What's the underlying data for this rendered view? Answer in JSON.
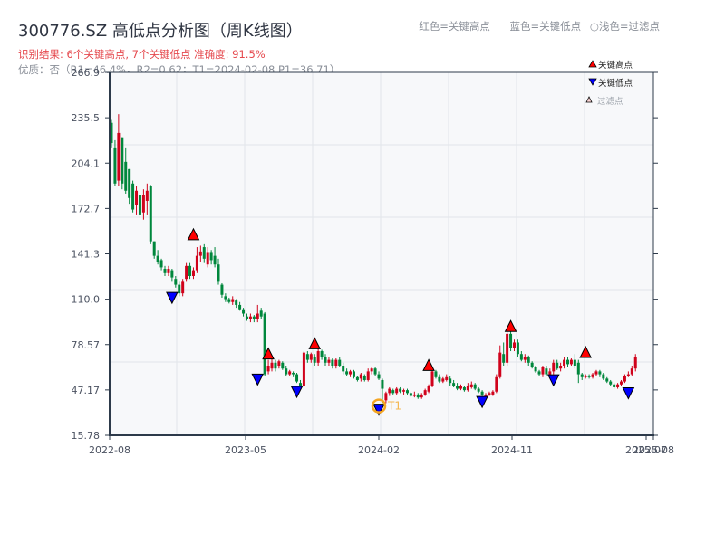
{
  "header": {
    "title": "300776.SZ 高低点分析图（周K线图）",
    "result": "识别结果: 6个关键高点, 7个关键低点   准确度: 91.5%",
    "quality": "优质：否（R1=46.4%，R2=0.62；T1=2024-02-08 P1=36.71）"
  },
  "top_legend": {
    "red": "红色=关键高点",
    "blue": "蓝色=关键低点",
    "light": "○浅色=过滤点"
  },
  "legend": {
    "high": "关键高点",
    "low": "关键低点",
    "filtered": "过滤点"
  },
  "colors": {
    "up": "#d0021b",
    "down": "#00873c",
    "high_marker": "#ff0000",
    "low_marker": "#0000ff",
    "t1_ring": "#f5a623",
    "plot_bg": "#f7f8fa",
    "grid": "#e2e5ea",
    "axis": "#2d3a4a"
  },
  "chart_data": {
    "type": "candlestick",
    "title": "300776.SZ 高低点分析图（周K线图）",
    "xlabel": "",
    "ylabel": "",
    "ylim": [
      15.78,
      266.9
    ],
    "y_ticks": [
      "266.9",
      "235.5",
      "204.1",
      "172.7",
      "141.3",
      "110.0",
      "78.57",
      "47.17",
      "15.78"
    ],
    "y_tick_values": [
      266.9,
      235.5,
      204.1,
      172.7,
      141.3,
      110.0,
      78.57,
      47.17,
      15.78
    ],
    "x_ticks": [
      "2022-08",
      "2023-05",
      "2024-02",
      "2024-11",
      "2025-07",
      "2025-08"
    ],
    "x_tick_index": [
      0,
      38,
      75.5,
      113,
      150.5,
      152.5
    ],
    "grid": true,
    "legend_position": "upper right",
    "candles_note": "[open, close, high, low] per weekly bar, estimated from pixels",
    "candles": [
      [
        232,
        218,
        234,
        215
      ],
      [
        215,
        190,
        220,
        188
      ],
      [
        192,
        225,
        238,
        188
      ],
      [
        222,
        190,
        222,
        186
      ],
      [
        205,
        185,
        215,
        183
      ],
      [
        200,
        180,
        200,
        176
      ],
      [
        190,
        172,
        192,
        170
      ],
      [
        175,
        185,
        188,
        168
      ],
      [
        182,
        168,
        184,
        166
      ],
      [
        170,
        182,
        186,
        165
      ],
      [
        178,
        185,
        190,
        168
      ],
      [
        188,
        150,
        189,
        148
      ],
      [
        150,
        140,
        150,
        138
      ],
      [
        140,
        136,
        144,
        134
      ],
      [
        137,
        132,
        138,
        130
      ],
      [
        131,
        128,
        133,
        126
      ],
      [
        128,
        131,
        133,
        126
      ],
      [
        130,
        125,
        131,
        122
      ],
      [
        124,
        120,
        126,
        118
      ],
      [
        120,
        114,
        122,
        112
      ],
      [
        114,
        122,
        124,
        112
      ],
      [
        124,
        133,
        135,
        122
      ],
      [
        133,
        126,
        135,
        124
      ],
      [
        126,
        130,
        132,
        124
      ],
      [
        130,
        140,
        146,
        128
      ],
      [
        140,
        143,
        147,
        136
      ],
      [
        146,
        138,
        148,
        135
      ],
      [
        134,
        142,
        146,
        132
      ],
      [
        142,
        137,
        144,
        134
      ],
      [
        140,
        134,
        146,
        132
      ],
      [
        134,
        122,
        138,
        120
      ],
      [
        120,
        113,
        121,
        111
      ],
      [
        112,
        110,
        114,
        108
      ],
      [
        110,
        108,
        111,
        107
      ],
      [
        108,
        110,
        112,
        106
      ],
      [
        109,
        106,
        110,
        104
      ],
      [
        106,
        103,
        108,
        102
      ],
      [
        103,
        100,
        104,
        98
      ],
      [
        98,
        96,
        100,
        95
      ],
      [
        96,
        98,
        100,
        94
      ],
      [
        98,
        96,
        99,
        94
      ],
      [
        96,
        100,
        106,
        94
      ],
      [
        102,
        98,
        104,
        96
      ],
      [
        100,
        58,
        101,
        57
      ],
      [
        60,
        64,
        68,
        58
      ],
      [
        62,
        66,
        70,
        60
      ],
      [
        66,
        62,
        68,
        60
      ],
      [
        64,
        67,
        68,
        62
      ],
      [
        66,
        62,
        67,
        61
      ],
      [
        62,
        58,
        64,
        57
      ],
      [
        58,
        60,
        61,
        57
      ],
      [
        59,
        58,
        60,
        56
      ],
      [
        58,
        53,
        59,
        52
      ],
      [
        52,
        50,
        54,
        49
      ],
      [
        50,
        73,
        74,
        49
      ],
      [
        72,
        68,
        74,
        66
      ],
      [
        68,
        72,
        73,
        66
      ],
      [
        70,
        66,
        72,
        64
      ],
      [
        66,
        74,
        77,
        64
      ],
      [
        74,
        70,
        75,
        68
      ],
      [
        70,
        66,
        72,
        64
      ],
      [
        66,
        68,
        70,
        64
      ],
      [
        68,
        64,
        69,
        62
      ],
      [
        64,
        68,
        69,
        62
      ],
      [
        68,
        64,
        70,
        63
      ],
      [
        64,
        60,
        66,
        58
      ],
      [
        60,
        58,
        62,
        57
      ],
      [
        58,
        60,
        61,
        56
      ],
      [
        60,
        56,
        61,
        55
      ],
      [
        56,
        54,
        57,
        53
      ],
      [
        55,
        58,
        59,
        53
      ],
      [
        57,
        54,
        58,
        53
      ],
      [
        54,
        60,
        62,
        53
      ],
      [
        60,
        62,
        63,
        58
      ],
      [
        62,
        58,
        63,
        57
      ],
      [
        58,
        55,
        60,
        54
      ],
      [
        54,
        48,
        55,
        38
      ],
      [
        40,
        45,
        46,
        38
      ],
      [
        45,
        48,
        49,
        43
      ],
      [
        47,
        45,
        48,
        44
      ],
      [
        45,
        48,
        49,
        44
      ],
      [
        48,
        46,
        49,
        45
      ],
      [
        46,
        47,
        48,
        44
      ],
      [
        47,
        45,
        48,
        44
      ],
      [
        45,
        43,
        46,
        42
      ],
      [
        43,
        44,
        46,
        42
      ],
      [
        44,
        42,
        45,
        41
      ],
      [
        42,
        44,
        45,
        41
      ],
      [
        44,
        47,
        48,
        43
      ],
      [
        46,
        50,
        51,
        45
      ],
      [
        50,
        60,
        62,
        49
      ],
      [
        60,
        56,
        61,
        55
      ],
      [
        56,
        53,
        58,
        52
      ],
      [
        53,
        55,
        56,
        52
      ],
      [
        54,
        56,
        58,
        53
      ],
      [
        55,
        52,
        57,
        50
      ],
      [
        52,
        50,
        54,
        49
      ],
      [
        50,
        48,
        52,
        47
      ],
      [
        48,
        50,
        51,
        47
      ],
      [
        49,
        47,
        50,
        46
      ],
      [
        47,
        50,
        52,
        46
      ],
      [
        49,
        51,
        53,
        48
      ],
      [
        51,
        48,
        52,
        47
      ],
      [
        48,
        46,
        49,
        45
      ],
      [
        46,
        44,
        47,
        43
      ],
      [
        43,
        44,
        45,
        42
      ],
      [
        44,
        45,
        46,
        43
      ],
      [
        44,
        46,
        47,
        43
      ],
      [
        46,
        56,
        58,
        45
      ],
      [
        56,
        73,
        78,
        55
      ],
      [
        72,
        66,
        80,
        64
      ],
      [
        66,
        86,
        90,
        64
      ],
      [
        86,
        76,
        88,
        74
      ],
      [
        76,
        80,
        82,
        74
      ],
      [
        80,
        72,
        82,
        70
      ],
      [
        72,
        68,
        74,
        67
      ],
      [
        68,
        70,
        72,
        66
      ],
      [
        70,
        66,
        71,
        64
      ],
      [
        66,
        63,
        67,
        62
      ],
      [
        63,
        60,
        64,
        59
      ],
      [
        60,
        58,
        61,
        57
      ],
      [
        58,
        63,
        64,
        56
      ],
      [
        62,
        58,
        64,
        57
      ],
      [
        58,
        60,
        62,
        57
      ],
      [
        60,
        66,
        68,
        58
      ],
      [
        66,
        62,
        68,
        61
      ],
      [
        62,
        64,
        66,
        60
      ],
      [
        64,
        68,
        70,
        62
      ],
      [
        68,
        65,
        70,
        63
      ],
      [
        65,
        68,
        69,
        64
      ],
      [
        68,
        64,
        72,
        62
      ],
      [
        66,
        58,
        68,
        52
      ],
      [
        58,
        56,
        59,
        54
      ],
      [
        56,
        57,
        58,
        55
      ],
      [
        57,
        56,
        58,
        55
      ],
      [
        56,
        58,
        59,
        55
      ],
      [
        58,
        60,
        61,
        57
      ],
      [
        60,
        58,
        61,
        56
      ],
      [
        58,
        55,
        59,
        54
      ],
      [
        55,
        53,
        56,
        52
      ],
      [
        53,
        51,
        54,
        50
      ],
      [
        51,
        49,
        52,
        48
      ],
      [
        49,
        51,
        52,
        48
      ],
      [
        51,
        53,
        54,
        50
      ],
      [
        53,
        57,
        58,
        52
      ],
      [
        57,
        58,
        60,
        56
      ],
      [
        58,
        62,
        64,
        57
      ],
      [
        62,
        70,
        72,
        60
      ]
    ],
    "key_highs": [
      {
        "index": 23,
        "value": 150.5
      },
      {
        "index": 44,
        "value": 68.0
      },
      {
        "index": 57,
        "value": 75.0
      },
      {
        "index": 89,
        "value": 60.0
      },
      {
        "index": 112,
        "value": 87.0
      },
      {
        "index": 133,
        "value": 69.0
      }
    ],
    "key_lows": [
      {
        "index": 17,
        "value": 114.0
      },
      {
        "index": 41,
        "value": 57.5
      },
      {
        "index": 52,
        "value": 49.0
      },
      {
        "index": 75,
        "value": 36.71
      },
      {
        "index": 104,
        "value": 42.0
      },
      {
        "index": 124,
        "value": 57.0
      },
      {
        "index": 145,
        "value": 48.0
      }
    ],
    "annotations": [
      {
        "label": "T1",
        "date": "2024-02-08",
        "price": 36.71
      }
    ]
  }
}
